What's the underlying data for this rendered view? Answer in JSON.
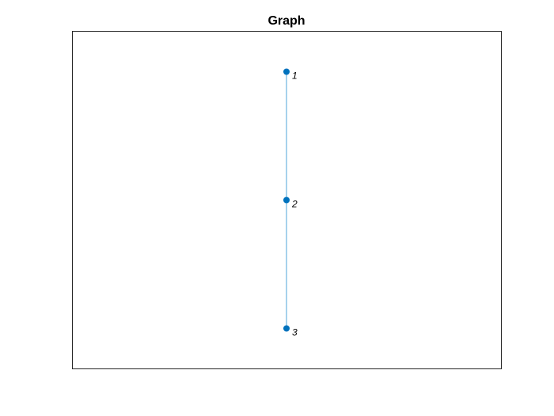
{
  "title": "Graph",
  "colors": {
    "node": "#0072BD",
    "edge": "#4DA6D8",
    "axes_border": "#262626"
  },
  "nodes": [
    {
      "id": "1",
      "label": "1"
    },
    {
      "id": "2",
      "label": "2"
    },
    {
      "id": "3",
      "label": "3"
    }
  ],
  "edges": [
    {
      "source": "1",
      "target": "2"
    },
    {
      "source": "2",
      "target": "3"
    }
  ]
}
